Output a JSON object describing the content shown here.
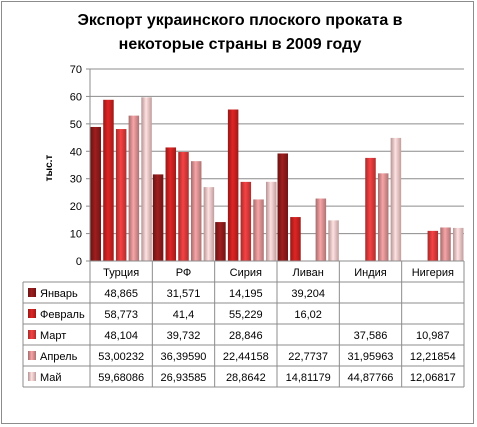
{
  "chart_data": {
    "type": "bar",
    "title_line1": "Экспорт украинского плоского проката в",
    "title_line2": "некоторые страны в 2009 году",
    "ylabel": "тыс.т",
    "ylim": [
      0,
      70
    ],
    "yticks": [
      "0",
      "10",
      "20",
      "30",
      "40",
      "50",
      "60",
      "70"
    ],
    "categories": [
      "Турция",
      "РФ",
      "Сирия",
      "Ливан",
      "Индия",
      "Нигерия"
    ],
    "legend_placement": "table-left",
    "grid": true,
    "series": [
      {
        "name": "Январь",
        "color": "#8b1a1a",
        "values": [
          48.865,
          31.571,
          14.195,
          39.204,
          null,
          null
        ],
        "labels": [
          "48,865",
          "31,571",
          "14,195",
          "39,204",
          "",
          ""
        ]
      },
      {
        "name": "Февраль",
        "color": "#c4201f",
        "values": [
          58.773,
          41.4,
          55.229,
          16.02,
          null,
          null
        ],
        "labels": [
          "58,773",
          "41,4",
          "55,229",
          "16,02",
          "",
          ""
        ]
      },
      {
        "name": "Март",
        "color": "#d8393a",
        "values": [
          48.104,
          39.732,
          28.846,
          null,
          37.586,
          10.987
        ],
        "labels": [
          "48,104",
          "39,732",
          "28,846",
          "",
          "37,586",
          "10,987"
        ]
      },
      {
        "name": "Апрель",
        "color": "#d88f90",
        "values": [
          53.00232,
          36.3959,
          22.44158,
          22.7737,
          31.95963,
          12.21854
        ],
        "labels": [
          "53,00232",
          "36,39590",
          "22,44158",
          "22,7737",
          "31,95963",
          "12,21854"
        ]
      },
      {
        "name": "Май",
        "color": "#f0c4c4",
        "values": [
          59.68086,
          26.93585,
          28.8642,
          14.81179,
          44.87766,
          12.06817
        ],
        "labels": [
          "59,68086",
          "26,93585",
          "28,8642",
          "14,81179",
          "44,87766",
          "12,06817"
        ]
      }
    ]
  }
}
